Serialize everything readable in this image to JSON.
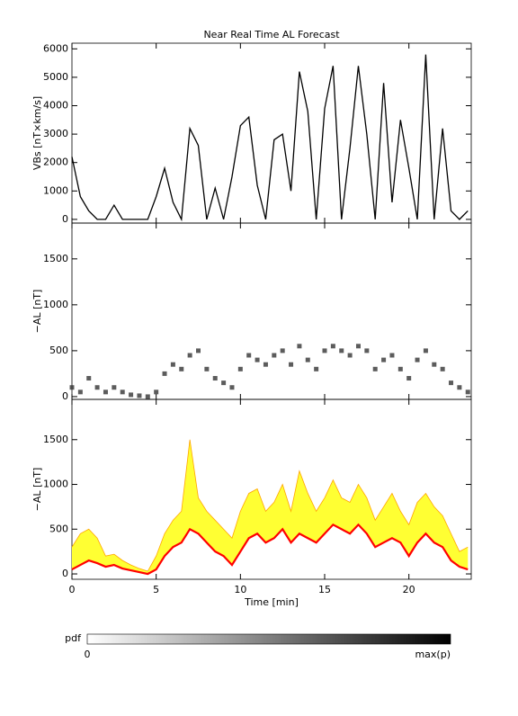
{
  "chart_data": [
    {
      "type": "line",
      "title": "Near Real Time AL Forecast",
      "ylabel": "VBs [nT×km/s]",
      "color": "#000000",
      "x": [
        0,
        0.5,
        1,
        1.5,
        2,
        2.5,
        3,
        3.5,
        4,
        4.5,
        5,
        5.5,
        6,
        6.5,
        7,
        7.5,
        8,
        8.5,
        9,
        9.5,
        10,
        10.5,
        11,
        11.5,
        12,
        12.5,
        13,
        13.5,
        14,
        14.5,
        15,
        15.5,
        16,
        16.5,
        17,
        17.5,
        18,
        18.5,
        19,
        19.5,
        20,
        20.5,
        21,
        21.5,
        22,
        22.5,
        23,
        23.5
      ],
      "values": [
        2200,
        800,
        300,
        0,
        0,
        500,
        0,
        0,
        0,
        0,
        800,
        1800,
        600,
        0,
        3200,
        2600,
        0,
        1100,
        0,
        1500,
        3300,
        3600,
        1200,
        0,
        2800,
        3000,
        1000,
        5200,
        3800,
        0,
        3900,
        5400,
        0,
        2500,
        5400,
        3000,
        0,
        4800,
        600,
        3500,
        1800,
        0,
        5800,
        0,
        3200,
        300,
        0,
        300
      ],
      "xlim": [
        0,
        23.7
      ],
      "xticks": [
        0,
        5,
        10,
        15,
        20
      ],
      "ylim": [
        -130,
        6200
      ],
      "yticks": [
        0,
        1000,
        2000,
        3000,
        4000,
        5000,
        6000
      ]
    },
    {
      "type": "scatter",
      "ylabel": "−AL [nT]",
      "color": "#333333",
      "x": [
        0,
        0.5,
        1,
        1.5,
        2,
        2.5,
        3,
        3.5,
        4,
        4.5,
        5,
        5.5,
        6,
        6.5,
        7,
        7.5,
        8,
        8.5,
        9,
        9.5,
        10,
        10.5,
        11,
        11.5,
        12,
        12.5,
        13,
        13.5,
        14,
        14.5,
        15,
        15.5,
        16,
        16.5,
        17,
        17.5,
        18,
        18.5,
        19,
        19.5,
        20,
        20.5,
        21,
        21.5,
        22,
        22.5,
        23,
        23.5
      ],
      "values": [
        100,
        50,
        200,
        100,
        50,
        100,
        50,
        20,
        10,
        0,
        50,
        250,
        350,
        300,
        450,
        500,
        300,
        200,
        150,
        100,
        300,
        450,
        400,
        350,
        450,
        500,
        350,
        550,
        400,
        300,
        500,
        550,
        500,
        450,
        550,
        500,
        300,
        400,
        450,
        300,
        200,
        400,
        500,
        350,
        300,
        150,
        100,
        50
      ],
      "xlim": [
        0,
        23.7
      ],
      "xticks": [
        0,
        5,
        10,
        15,
        20
      ],
      "ylim": [
        -30,
        1890
      ],
      "yticks": [
        0,
        500,
        1000,
        1500
      ]
    },
    {
      "type": "area",
      "ylabel": "−AL [nT]",
      "xlabel": "Time [min]",
      "color": "#ff0000",
      "band_color": "#ffff33",
      "edge_color": "#ffa500",
      "x": [
        0,
        0.5,
        1,
        1.5,
        2,
        2.5,
        3,
        3.5,
        4,
        4.5,
        5,
        5.5,
        6,
        6.5,
        7,
        7.5,
        8,
        8.5,
        9,
        9.5,
        10,
        10.5,
        11,
        11.5,
        12,
        12.5,
        13,
        13.5,
        14,
        14.5,
        15,
        15.5,
        16,
        16.5,
        17,
        17.5,
        18,
        18.5,
        19,
        19.5,
        20,
        20.5,
        21,
        21.5,
        22,
        22.5,
        23,
        23.5
      ],
      "values": [
        50,
        100,
        150,
        120,
        80,
        100,
        60,
        40,
        20,
        0,
        50,
        200,
        300,
        350,
        500,
        450,
        350,
        250,
        200,
        100,
        250,
        400,
        450,
        350,
        400,
        500,
        350,
        450,
        400,
        350,
        450,
        550,
        500,
        450,
        550,
        450,
        300,
        350,
        400,
        350,
        200,
        350,
        450,
        350,
        300,
        150,
        80,
        50
      ],
      "upper": [
        300,
        450,
        500,
        400,
        200,
        220,
        150,
        100,
        60,
        30,
        200,
        450,
        600,
        700,
        1500,
        850,
        700,
        600,
        500,
        400,
        700,
        900,
        950,
        700,
        800,
        1000,
        700,
        1150,
        900,
        700,
        850,
        1050,
        850,
        800,
        1000,
        850,
        600,
        750,
        900,
        700,
        550,
        800,
        900,
        750,
        650,
        450,
        250,
        300
      ],
      "xlim": [
        0,
        23.7
      ],
      "xticks": [
        0,
        5,
        10,
        15,
        20
      ],
      "ylim": [
        -60,
        1950
      ],
      "yticks": [
        0,
        500,
        1000,
        1500
      ]
    }
  ],
  "colorbar": {
    "label": "pdf",
    "min_label": "0",
    "max_label": "max(p)"
  }
}
